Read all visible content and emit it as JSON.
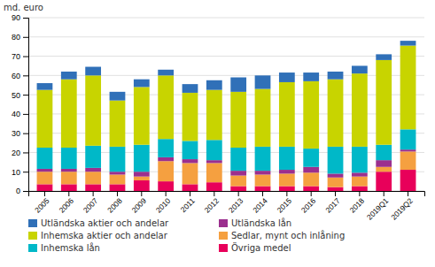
{
  "chart_data": {
    "type": "bar",
    "stacked": true,
    "ylabel": "md. euro",
    "categories": [
      "2005",
      "2006",
      "2007",
      "2008",
      "2009",
      "2010",
      "2011",
      "2012",
      "2013",
      "2014",
      "2015",
      "2016",
      "2017",
      "2018",
      "2019Q1",
      "2019Q2"
    ],
    "series": [
      {
        "name": "Övriga medel",
        "color": "#e8005a",
        "values": [
          3.5,
          3.5,
          3.5,
          3.5,
          5.5,
          5.0,
          3.5,
          4.5,
          2.5,
          2.5,
          2.5,
          2.5,
          2.0,
          2.5,
          10.0,
          11.0
        ]
      },
      {
        "name": "Sedlar, mynt och inlåning",
        "color": "#f5a040",
        "values": [
          6.5,
          6.5,
          6.5,
          5.0,
          2.0,
          10.5,
          11.0,
          10.0,
          5.5,
          6.0,
          6.5,
          7.0,
          5.0,
          5.0,
          2.5,
          9.5
        ]
      },
      {
        "name": "Utländska lån",
        "color": "#9b2f8e",
        "values": [
          1.5,
          1.5,
          2.0,
          1.5,
          2.5,
          2.0,
          2.0,
          1.5,
          2.5,
          2.0,
          2.0,
          3.0,
          2.0,
          2.0,
          3.5,
          1.0
        ]
      },
      {
        "name": "Inhemska lån",
        "color": "#00b8c8",
        "values": [
          11.0,
          11.0,
          11.5,
          13.0,
          14.0,
          9.5,
          9.5,
          10.5,
          12.0,
          12.5,
          12.0,
          9.5,
          14.0,
          13.5,
          8.0,
          10.5
        ]
      },
      {
        "name": "Inhemska aktier och andelar",
        "color": "#c8d400",
        "values": [
          30.0,
          35.5,
          36.5,
          24.0,
          30.0,
          33.0,
          25.0,
          26.0,
          29.0,
          30.0,
          33.5,
          35.0,
          35.0,
          38.0,
          44.0,
          43.5
        ]
      },
      {
        "name": "Utländska aktier och andelar",
        "color": "#3070b8",
        "values": [
          3.5,
          4.0,
          4.5,
          4.5,
          4.0,
          3.0,
          4.5,
          5.0,
          7.5,
          7.0,
          5.0,
          4.5,
          4.0,
          4.0,
          3.0,
          2.5
        ]
      }
    ],
    "ylim": [
      0,
      90
    ],
    "yticks": [
      0,
      10,
      20,
      30,
      40,
      50,
      60,
      70,
      80,
      90
    ],
    "grid": true,
    "legend": "bottom"
  }
}
